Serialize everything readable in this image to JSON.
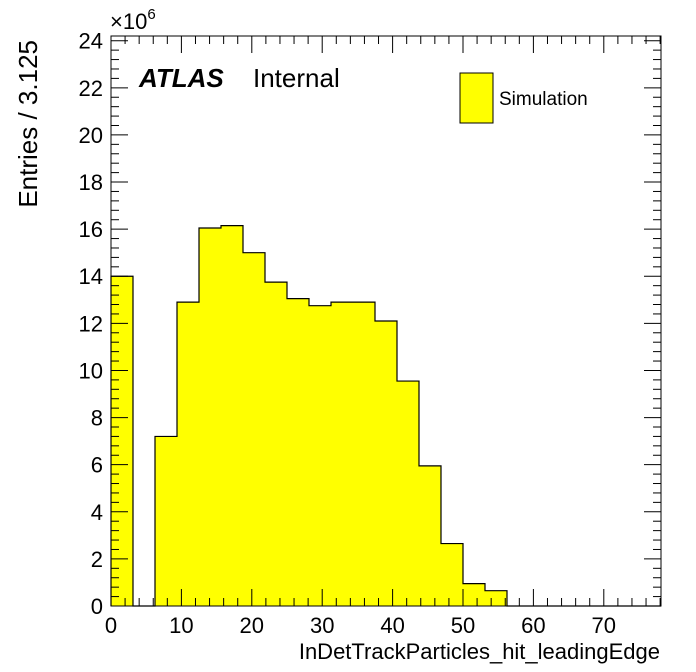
{
  "chart_data": {
    "type": "bar",
    "xlabel": "InDetTrackParticles_hit_leadingEdge",
    "ylabel": "Entries / 3.125",
    "y_multiplier": "×10",
    "y_exponent": "6",
    "xlim": [
      0,
      78.125
    ],
    "ylim": [
      0,
      24.2
    ],
    "bin_width": 3.125,
    "bin_low_edges": [
      0,
      3.125,
      6.25,
      9.375,
      12.5,
      15.625,
      18.75,
      21.875,
      25,
      28.125,
      31.25,
      34.375,
      37.5,
      40.625,
      43.75,
      46.875,
      50,
      53.125,
      56.25,
      59.375,
      62.5,
      65.625,
      68.75,
      71.875,
      75
    ],
    "values": [
      14.0,
      0,
      7.2,
      12.9,
      16.05,
      16.15,
      15.0,
      13.75,
      13.05,
      12.75,
      12.9,
      12.9,
      12.1,
      9.55,
      5.95,
      2.65,
      0.95,
      0.65,
      0,
      0,
      0,
      0,
      0,
      0,
      0
    ],
    "x_ticks": [
      "0",
      "10",
      "20",
      "30",
      "40",
      "50",
      "60",
      "70"
    ],
    "x_tick_values": [
      0,
      10,
      20,
      30,
      40,
      50,
      60,
      70
    ],
    "y_ticks": [
      "0",
      "2",
      "4",
      "6",
      "8",
      "10",
      "12",
      "14",
      "16",
      "18",
      "20",
      "22",
      "24"
    ],
    "y_tick_values": [
      0,
      2,
      4,
      6,
      8,
      10,
      12,
      14,
      16,
      18,
      20,
      22,
      24
    ],
    "legend": [
      {
        "name": "Simulation",
        "color": "#ffff00"
      }
    ],
    "legend_position": "top-right",
    "fill_color": "#ffff00",
    "line_color": "#000000",
    "grid": false,
    "annotations": {
      "experiment": "ATLAS",
      "status": "Internal"
    }
  }
}
